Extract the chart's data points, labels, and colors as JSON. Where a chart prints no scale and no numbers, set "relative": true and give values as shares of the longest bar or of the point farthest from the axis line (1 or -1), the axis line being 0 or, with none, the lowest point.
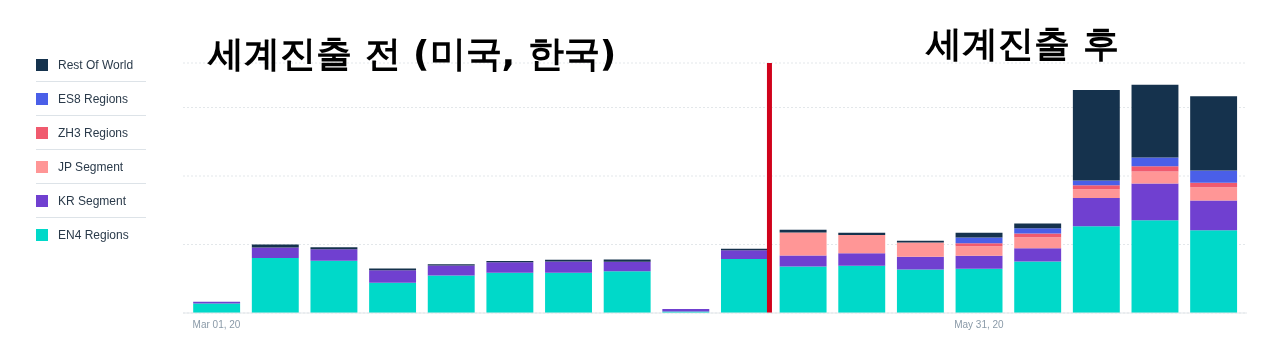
{
  "chart_data": {
    "type": "bar",
    "stacked": true,
    "relative": true,
    "grid": "y",
    "legend": "left",
    "x": [
      "2020-03-01",
      "2020-03-08",
      "2020-03-15",
      "2020-03-22",
      "2020-03-29",
      "2020-04-05",
      "2020-04-12",
      "2020-04-19",
      "2020-04-26",
      "2020-05-03",
      "2020-05-10",
      "2020-05-17",
      "2020-05-24",
      "2020-05-31",
      "2020-06-07",
      "2020-06-14",
      "2020-06-21",
      "2020-06-28"
    ],
    "xlim": [
      "2020-02-26",
      "2020-07-02"
    ],
    "xticks": [
      {
        "value": "2020-03-01",
        "label": "Mar 01, 20"
      },
      {
        "value": "2020-05-31",
        "label": "May 31, 20"
      }
    ],
    "series": [
      {
        "name": "EN4 Regions",
        "color": "#00d9c9",
        "values": [
          0.042,
          0.241,
          0.229,
          0.133,
          0.164,
          0.176,
          0.176,
          0.183,
          0.007,
          0.237,
          0.204,
          0.207,
          0.191,
          0.194,
          0.226,
          0.38,
          0.406,
          0.362
        ]
      },
      {
        "name": "KR Segment",
        "color": "#7040d0",
        "values": [
          0.007,
          0.046,
          0.05,
          0.054,
          0.044,
          0.046,
          0.05,
          0.042,
          0.011,
          0.038,
          0.048,
          0.055,
          0.055,
          0.057,
          0.058,
          0.124,
          0.161,
          0.131
        ]
      },
      {
        "name": "JP Segment",
        "color": "#ff9696",
        "values": [
          null,
          null,
          null,
          null,
          null,
          null,
          null,
          null,
          null,
          null,
          0.101,
          0.08,
          0.063,
          0.041,
          0.048,
          0.038,
          0.053,
          0.058
        ]
      },
      {
        "name": "ZH3 Regions",
        "color": "#f05a6e",
        "values": [
          null,
          null,
          null,
          null,
          null,
          null,
          null,
          null,
          null,
          null,
          null,
          null,
          null,
          0.013,
          0.016,
          0.018,
          0.023,
          0.02
        ]
      },
      {
        "name": "ES8 Regions",
        "color": "#4a5fe8",
        "values": [
          null,
          null,
          null,
          null,
          null,
          null,
          null,
          null,
          null,
          null,
          null,
          null,
          null,
          0.026,
          0.023,
          0.02,
          0.038,
          0.053
        ]
      },
      {
        "name": "Rest Of World",
        "color": "#15324d",
        "values": [
          null,
          0.013,
          0.009,
          0.008,
          0.006,
          0.006,
          0.007,
          0.009,
          null,
          0.006,
          0.012,
          0.01,
          0.007,
          0.02,
          0.021,
          0.397,
          0.319,
          0.325
        ]
      }
    ],
    "ref_lines": [
      {
        "axis": "x",
        "value": "2020-05-06",
        "color": "#d0021b"
      }
    ],
    "annotations": [
      "세계진출 전 (미국, 한국)",
      "세계진출 후"
    ]
  }
}
